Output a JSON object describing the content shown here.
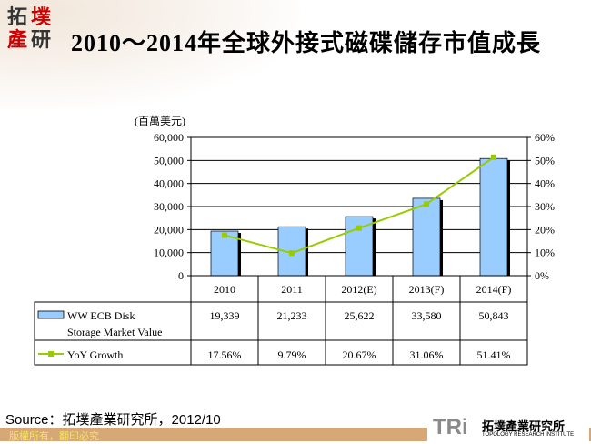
{
  "header": {
    "logo_text": "拓墣產研",
    "title": "2010～2014年全球外接式磁碟儲存市值成長"
  },
  "chart_data": {
    "type": "bar+line",
    "categories": [
      "2010",
      "2011",
      "2012(E)",
      "2013(F)",
      "2014(F)"
    ],
    "unit_label": "(百萬美元)",
    "left_axis": {
      "range": [
        0,
        60000
      ],
      "ticks": [
        "0",
        "10,000",
        "20,000",
        "30,000",
        "40,000",
        "50,000",
        "60,000"
      ]
    },
    "right_axis": {
      "range": [
        0,
        60
      ],
      "ticks": [
        "0%",
        "10%",
        "20%",
        "30%",
        "40%",
        "50%",
        "60%"
      ]
    },
    "series": [
      {
        "name": "WW ECB Disk Storage Market Value",
        "type": "bar",
        "color": "#99ccff",
        "values": [
          19339,
          21233,
          25622,
          33580,
          50843
        ],
        "labels": [
          "19,339",
          "21,233",
          "25,622",
          "33,580",
          "50,843"
        ]
      },
      {
        "name": "YoY Growth",
        "type": "line",
        "axis": "right",
        "color": "#99cc00",
        "values": [
          17.56,
          9.79,
          20.67,
          31.06,
          51.41
        ],
        "labels": [
          "17.56%",
          "9.79%",
          "20.67%",
          "31.06%",
          "51.41%"
        ]
      }
    ],
    "grid": true,
    "data_table": true
  },
  "source": "Source：拓墣產業研究所，2012/10",
  "footer": {
    "copyright": "版權所有，翻印必究",
    "brand_mark": "TRi",
    "brand_cn": "拓墣產業研究所",
    "brand_en": "TOPOLOGY RESEARCH INSTITUTE"
  }
}
